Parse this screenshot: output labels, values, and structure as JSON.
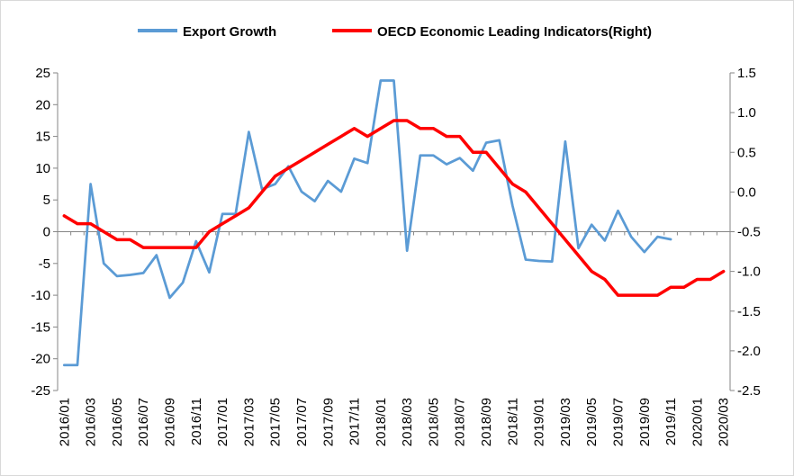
{
  "chart_data": {
    "type": "line",
    "title": "",
    "xlabel": "",
    "ylabel": "",
    "legend_position": "top",
    "grid": false,
    "x": [
      "2016/01",
      "2016/02",
      "2016/03",
      "2016/04",
      "2016/05",
      "2016/06",
      "2016/07",
      "2016/08",
      "2016/09",
      "2016/10",
      "2016/11",
      "2016/12",
      "2017/01",
      "2017/02",
      "2017/03",
      "2017/04",
      "2017/05",
      "2017/06",
      "2017/07",
      "2017/08",
      "2017/09",
      "2017/10",
      "2017/11",
      "2017/12",
      "2018/01",
      "2018/02",
      "2018/03",
      "2018/04",
      "2018/05",
      "2018/06",
      "2018/07",
      "2018/08",
      "2018/09",
      "2018/10",
      "2018/11",
      "2018/12",
      "2019/01",
      "2019/02",
      "2019/03",
      "2019/04",
      "2019/05",
      "2019/06",
      "2019/07",
      "2019/08",
      "2019/09",
      "2019/10",
      "2019/11",
      "2019/12",
      "2020/01",
      "2020/02",
      "2020/03"
    ],
    "x_tick_labels": [
      "2016/01",
      "2016/03",
      "2016/05",
      "2016/07",
      "2016/09",
      "2016/11",
      "2017/01",
      "2017/03",
      "2017/05",
      "2017/07",
      "2017/09",
      "2017/11",
      "2018/01",
      "2018/03",
      "2018/05",
      "2018/07",
      "2018/09",
      "2018/11",
      "2019/01",
      "2019/03",
      "2019/05",
      "2019/07",
      "2019/09",
      "2019/11",
      "2020/01",
      "2020/03"
    ],
    "y_left": {
      "min": -25,
      "max": 25,
      "ticks": [
        "25",
        "20",
        "15",
        "10",
        "5",
        "0",
        "-5",
        "-10",
        "-15",
        "-20",
        "-25"
      ]
    },
    "y_right": {
      "min": -2.5,
      "max": 1.5,
      "ticks": [
        "1.5",
        "1.0",
        "0.5",
        "0.0",
        "-0.5",
        "-1.0",
        "-1.5",
        "-2.0",
        "-2.5"
      ]
    },
    "series": [
      {
        "name": "Export Growth",
        "axis": "left",
        "color": "#5b9bd5",
        "values": [
          -21,
          -21,
          7.5,
          -5,
          -7,
          -6.8,
          -6.5,
          -3.7,
          -10.4,
          -8,
          -1.5,
          -6.4,
          2.8,
          2.8,
          15.7,
          6.7,
          7.5,
          10.3,
          6.3,
          4.8,
          8,
          6.3,
          11.5,
          10.8,
          23.8,
          23.8,
          -3,
          12,
          12,
          10.6,
          11.6,
          9.6,
          14,
          14.4,
          4.1,
          -4.4,
          -4.6,
          -4.7,
          14.2,
          -2.6,
          1.1,
          -1.4,
          3.3,
          -0.8,
          -3.2,
          -0.8,
          -1.2,
          null,
          null,
          null,
          null
        ]
      },
      {
        "name": "OECD Economic Leading Indicators(Right)",
        "axis": "right",
        "color": "#ff0000",
        "values": [
          -0.3,
          -0.4,
          -0.4,
          -0.5,
          -0.6,
          -0.6,
          -0.7,
          -0.7,
          -0.7,
          -0.7,
          -0.7,
          -0.5,
          -0.4,
          -0.3,
          -0.2,
          0.0,
          0.2,
          0.3,
          0.4,
          0.5,
          0.6,
          0.7,
          0.8,
          0.7,
          0.8,
          0.9,
          0.9,
          0.8,
          0.8,
          0.7,
          0.7,
          0.5,
          0.5,
          0.3,
          0.1,
          0.0,
          -0.2,
          -0.4,
          -0.6,
          -0.8,
          -1.0,
          -1.1,
          -1.3,
          -1.3,
          -1.3,
          -1.3,
          -1.2,
          -1.2,
          -1.1,
          -1.1,
          -1.0
        ]
      }
    ]
  }
}
